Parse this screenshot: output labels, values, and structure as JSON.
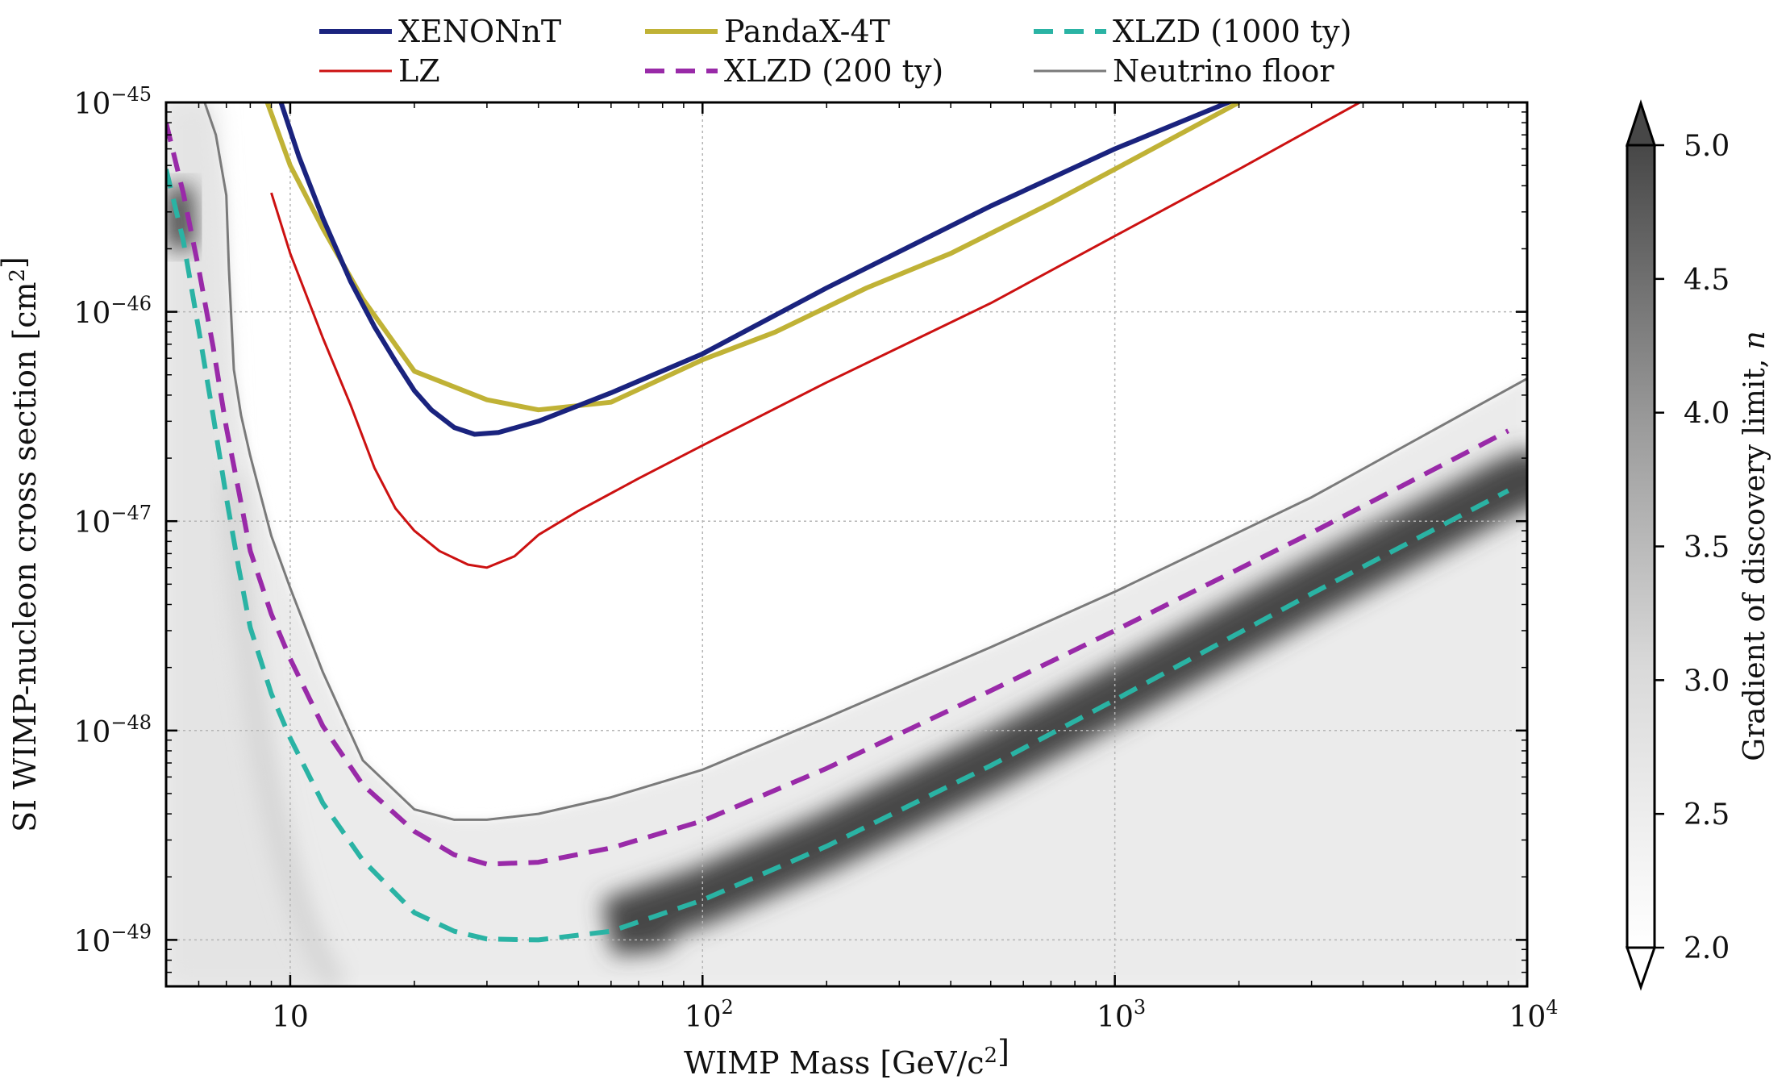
{
  "chart_data": {
    "type": "line",
    "xlabel": "WIMP Mass [GeV/c²]",
    "ylabel": "SI WIMP-nucleon cross section [cm²]",
    "xscale": "log",
    "yscale": "log",
    "xlim": [
      5,
      10000
    ],
    "ylim": [
      6e-50,
      1e-45
    ],
    "grid": true,
    "legend_placement": "top, above plot, three columns",
    "x_ticks": [
      {
        "value": 10,
        "label": "10"
      },
      {
        "value": 100,
        "label": "10",
        "exp": "2"
      },
      {
        "value": 1000,
        "label": "10",
        "exp": "3"
      },
      {
        "value": 10000,
        "label": "10",
        "exp": "4"
      }
    ],
    "y_ticks": [
      {
        "value": 1e-45,
        "label": "10",
        "exp": "−45"
      },
      {
        "value": 1e-46,
        "label": "10",
        "exp": "−46"
      },
      {
        "value": 1e-47,
        "label": "10",
        "exp": "−47"
      },
      {
        "value": 1e-48,
        "label": "10",
        "exp": "−48"
      },
      {
        "value": 1e-49,
        "label": "10",
        "exp": "−49"
      }
    ],
    "series": [
      {
        "name": "XENONnT",
        "color": "#1a237e",
        "style": "solid",
        "width": 6,
        "x": [
          9.5,
          10.5,
          12,
          14,
          16,
          18,
          20,
          22,
          25,
          28,
          32,
          40,
          60,
          100,
          200,
          500,
          1000,
          2000
        ],
        "y": [
          1e-45,
          5.5e-46,
          2.8e-46,
          1.4e-46,
          8.5e-47,
          5.8e-47,
          4.2e-47,
          3.4e-47,
          2.8e-47,
          2.6e-47,
          2.65e-47,
          3e-47,
          4.1e-47,
          6.3e-47,
          1.3e-46,
          3.2e-46,
          6e-46,
          1.05e-45
        ]
      },
      {
        "name": "LZ",
        "color": "#cc1111",
        "style": "solid",
        "width": 3,
        "x": [
          9,
          10,
          12,
          14,
          16,
          18,
          20,
          23,
          27,
          30,
          35,
          40,
          50,
          70,
          100,
          200,
          500,
          1000,
          2000,
          4000
        ],
        "y": [
          3.7e-46,
          1.9e-46,
          7.5e-47,
          3.6e-47,
          1.8e-47,
          1.15e-47,
          9e-48,
          7.2e-48,
          6.2e-48,
          6e-48,
          6.8e-48,
          8.6e-48,
          1.12e-47,
          1.6e-47,
          2.3e-47,
          4.6e-47,
          1.1e-46,
          2.3e-46,
          4.8e-46,
          1.02e-45
        ]
      },
      {
        "name": "PandaX-4T",
        "color": "#c0b236",
        "style": "solid",
        "width": 6,
        "x": [
          8.8,
          10,
          12,
          15,
          20,
          30,
          40,
          60,
          100,
          150,
          250,
          400,
          700,
          1000,
          2000
        ],
        "y": [
          1e-45,
          5e-46,
          2.5e-46,
          1.15e-46,
          5.2e-47,
          3.8e-47,
          3.4e-47,
          3.7e-47,
          5.9e-47,
          8e-47,
          1.3e-46,
          1.9e-46,
          3.3e-46,
          4.8e-46,
          1e-45
        ]
      },
      {
        "name": "XLZD (200 ty)",
        "color": "#992aa8",
        "style": "dashed",
        "width": 6,
        "x": [
          5,
          5.5,
          6,
          6.5,
          7,
          7.5,
          8,
          9,
          10,
          12,
          15,
          20,
          25,
          30,
          40,
          60,
          100,
          200,
          500,
          1000,
          3000,
          9000
        ],
        "y": [
          8e-46,
          3.7e-46,
          1.6e-46,
          6.8e-47,
          2.8e-47,
          1.4e-47,
          7.2e-48,
          3.6e-48,
          2.2e-48,
          1.05e-48,
          5.5e-49,
          3.3e-49,
          2.55e-49,
          2.3e-49,
          2.35e-49,
          2.75e-49,
          3.7e-49,
          6.6e-49,
          1.55e-48,
          3e-48,
          8.8e-48,
          2.7e-47
        ]
      },
      {
        "name": "XLZD (1000 ty)",
        "color": "#2ab3a4",
        "style": "dashed",
        "width": 6,
        "x": [
          5,
          5.5,
          6,
          6.5,
          7,
          7.5,
          8,
          9,
          10,
          12,
          15,
          20,
          25,
          30,
          40,
          60,
          100,
          200,
          500,
          1000,
          3000,
          9000
        ],
        "y": [
          4.8e-46,
          2.2e-46,
          8.2e-47,
          3.2e-47,
          1.3e-47,
          6e-48,
          3.1e-48,
          1.5e-48,
          9.2e-49,
          4.5e-49,
          2.4e-49,
          1.35e-49,
          1.1e-49,
          1.01e-49,
          1e-49,
          1.1e-49,
          1.55e-49,
          2.8e-49,
          6.8e-49,
          1.4e-48,
          4.5e-48,
          1.4e-47
        ]
      },
      {
        "name": "Neutrino floor",
        "color": "#7a7a7a",
        "style": "solid",
        "width": 3,
        "x": [
          6.2,
          6.6,
          7.0,
          7.1,
          7.3,
          7.6,
          8,
          9,
          10,
          12,
          15,
          20,
          25,
          30,
          40,
          60,
          100,
          200,
          500,
          1000,
          3000,
          10000
        ],
        "y": [
          1e-45,
          7e-46,
          3.6e-46,
          1.6e-46,
          5.3e-47,
          3.2e-47,
          2.05e-47,
          8.5e-48,
          4.8e-48,
          1.9e-48,
          7.2e-49,
          4.2e-49,
          3.75e-49,
          3.75e-49,
          4e-49,
          4.8e-49,
          6.5e-49,
          1.15e-48,
          2.5e-48,
          4.6e-48,
          1.3e-47,
          4.8e-47
        ]
      }
    ],
    "colorbar": {
      "label": "Gradient of discovery limit, n",
      "range": [
        2.0,
        5.0
      ],
      "ticks": [
        "2.0",
        "2.5",
        "3.0",
        "3.5",
        "4.0",
        "4.5",
        "5.0"
      ],
      "colormap": "greys"
    }
  }
}
